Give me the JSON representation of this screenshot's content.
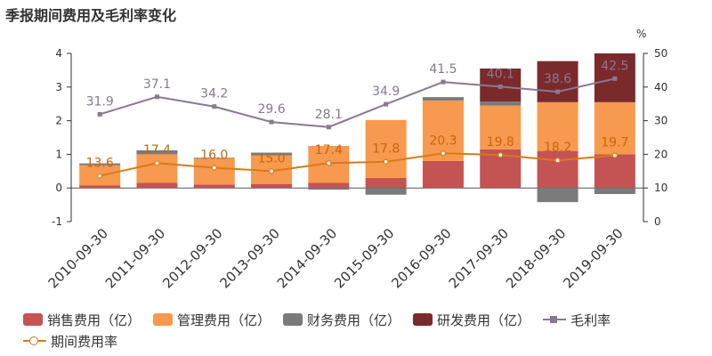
{
  "title": "季报期间费用及毛利率变化",
  "chart_data": {
    "type": "bar",
    "categories": [
      "2010-09-30",
      "2011-09-30",
      "2012-09-30",
      "2013-09-30",
      "2014-09-30",
      "2015-09-30",
      "2016-09-30",
      "2017-09-30",
      "2018-09-30",
      "2019-09-30"
    ],
    "left_axis": {
      "min": -1,
      "max": 4,
      "ticks": [
        "4",
        "3",
        "2",
        "1",
        "0",
        "-1"
      ]
    },
    "right_axis": {
      "min": 0,
      "max": 50,
      "unit": "%",
      "ticks": [
        "50",
        "40",
        "30",
        "20",
        "10",
        "0"
      ]
    },
    "bar_series": [
      {
        "name": "销售费用（亿）",
        "color": "#c45353",
        "values": [
          0.08,
          0.15,
          0.1,
          0.12,
          0.15,
          0.3,
          0.8,
          1.15,
          1.1,
          1.0
        ]
      },
      {
        "name": "管理费用（亿）",
        "color": "#f7994e",
        "values": [
          0.6,
          0.85,
          0.78,
          0.85,
          1.1,
          1.72,
          1.8,
          1.3,
          1.45,
          1.55
        ]
      },
      {
        "name": "财务费用（亿）",
        "color": "#7a7a7a",
        "values": [
          0.05,
          0.12,
          0.02,
          0.08,
          -0.05,
          -0.2,
          0.1,
          0.12,
          -0.42,
          -0.18
        ]
      },
      {
        "name": "研发费用（亿）",
        "color": "#7a2a2a",
        "values": [
          0,
          0,
          0,
          0,
          0,
          0,
          0,
          0.98,
          1.22,
          1.45
        ]
      }
    ],
    "line_series": [
      {
        "name": "毛利率",
        "color": "#8a7891",
        "label_color": "#8a7891",
        "values": [
          31.9,
          37.1,
          34.2,
          29.6,
          28.1,
          34.9,
          41.5,
          40.1,
          38.6,
          42.5
        ],
        "labels": [
          "31.9",
          "37.1",
          "34.2",
          "29.6",
          "28.1",
          "34.9",
          "41.5",
          "40.1",
          "38.6",
          "42.5"
        ]
      },
      {
        "name": "期间费用率",
        "color": "#d97a1a",
        "label_color": "#c8650f",
        "values": [
          13.6,
          17.4,
          16.0,
          15.0,
          17.4,
          17.8,
          20.3,
          19.8,
          18.2,
          19.7
        ],
        "labels": [
          "13.6",
          "17.4",
          "16.0",
          "15.0",
          "17.4",
          "17.8",
          "20.3",
          "19.8",
          "18.2",
          "19.7"
        ]
      }
    ],
    "grid": false,
    "legend_position": "bottom"
  }
}
